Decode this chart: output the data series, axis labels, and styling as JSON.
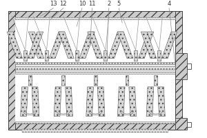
{
  "bg_color": "#ffffff",
  "fig_width": 3.0,
  "fig_height": 2.0,
  "dpi": 100,
  "outer_lc": "#444444",
  "inner_lc": "#666666",
  "hatch_fc": "#cccccc",
  "dot_fc": "#e0e0e0",
  "white": "#ffffff",
  "label_fs": 6.0,
  "label_color": "#333333",
  "leader_color": "#888888"
}
